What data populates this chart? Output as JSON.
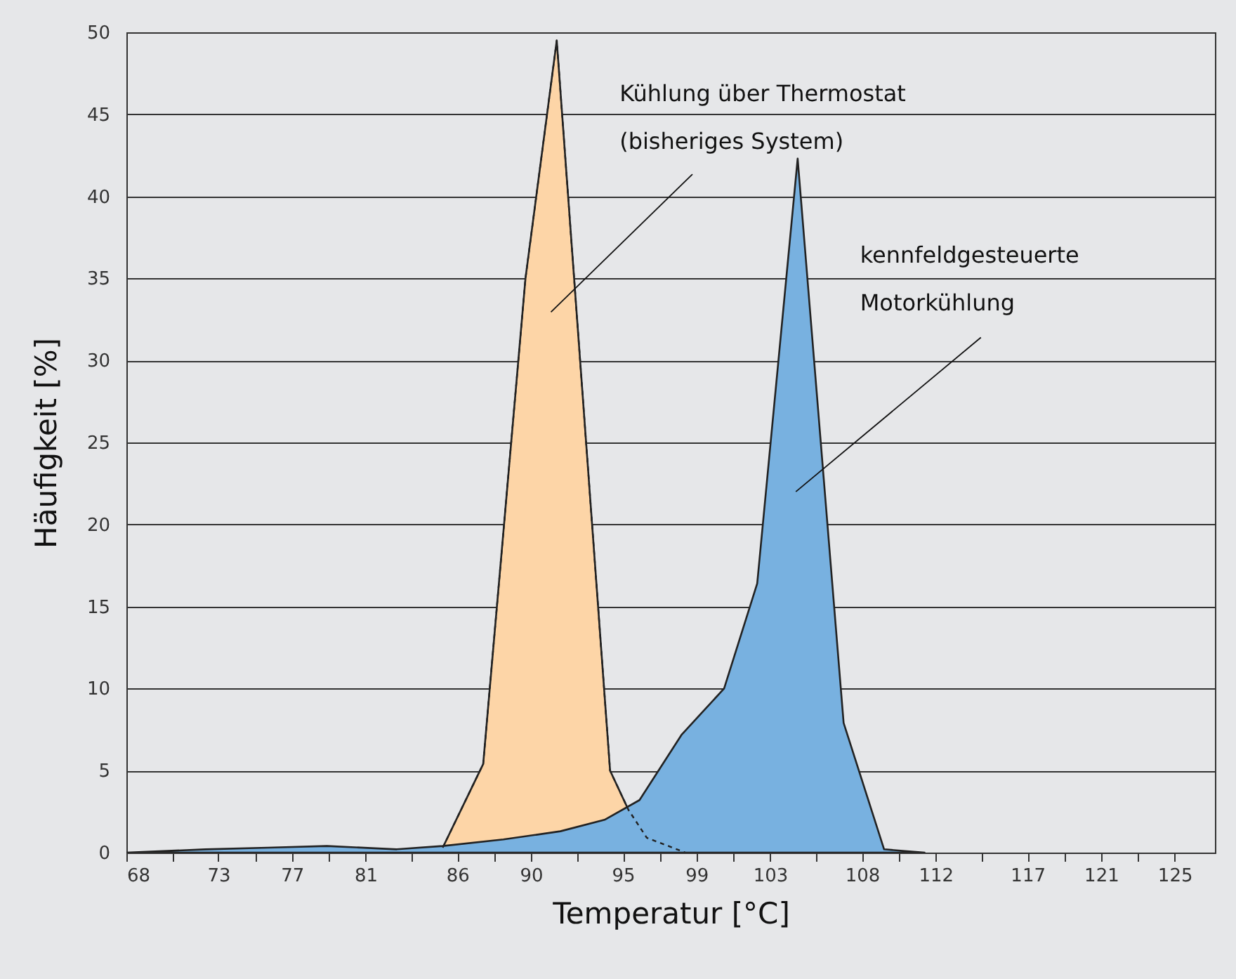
{
  "chart_data": {
    "type": "area",
    "xlabel": "Temperatur [°C]",
    "ylabel": "Häufigkeit [%]",
    "xlim": [
      68,
      127.19
    ],
    "xticks": [
      68,
      {
        "value": 70.5,
        "label": null
      },
      73,
      {
        "value": 75,
        "label": null
      },
      77,
      {
        "value": 79,
        "label": null
      },
      81,
      {
        "value": 83.5,
        "label": null
      },
      86,
      {
        "value": 88,
        "label": null
      },
      90,
      {
        "value": 92.5,
        "label": null
      },
      95,
      {
        "value": 97,
        "label": null
      },
      99,
      {
        "value": 101,
        "label": null
      },
      103,
      {
        "value": 105.5,
        "label": null
      },
      108,
      {
        "value": 110,
        "label": null
      },
      112,
      {
        "value": 114.5,
        "label": null
      },
      117,
      {
        "value": 119,
        "label": null
      },
      121,
      {
        "value": 123,
        "label": null
      },
      125
    ],
    "ylim": [
      0,
      50
    ],
    "yticks": [
      0,
      5,
      10,
      15,
      20,
      25,
      30,
      35,
      40,
      45,
      50
    ],
    "grid": "y",
    "series": [
      {
        "name": "Kühlung über Thermostat\n(bisheriges System)",
        "color": "#fdd5a7",
        "x": [
          85.2,
          87.4,
          89.7,
          91.4,
          94.3,
          95.3,
          96.3,
          98.4
        ],
        "values": [
          0.3,
          5.4,
          35,
          49.5,
          5,
          2.6,
          0.9,
          0
        ]
      },
      {
        "name": "kennfeldgesteuerte\nMotorkühlung",
        "color": "#78b1e0",
        "x": [
          68,
          72.3,
          75.7,
          78.9,
          82.7,
          85.2,
          88.5,
          91.6,
          94,
          95.9,
          98.2,
          100.5,
          102.3,
          104.5,
          107,
          109.2,
          111.4
        ],
        "values": [
          0,
          0.2,
          0.3,
          0.4,
          0.2,
          0.4,
          0.8,
          1.3,
          2,
          3.2,
          7.2,
          10,
          16.4,
          42.3,
          7.9,
          0.2,
          0
        ]
      }
    ]
  }
}
